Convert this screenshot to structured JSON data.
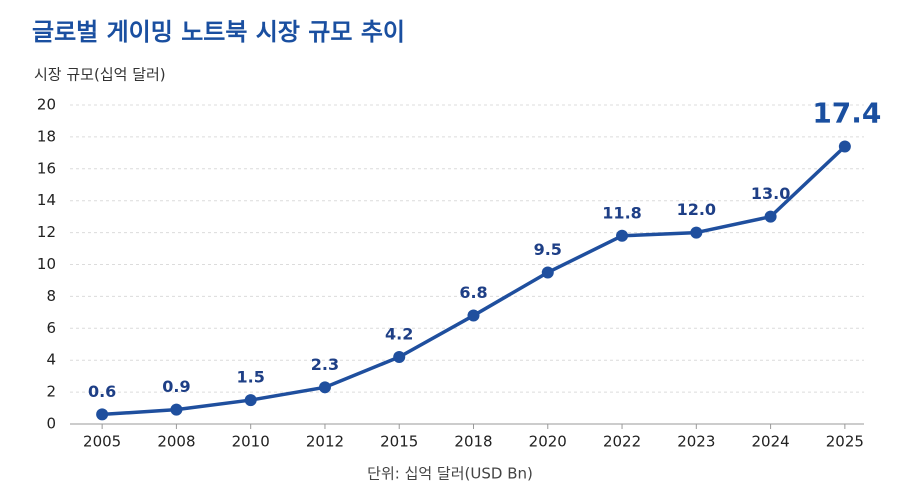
{
  "chart_data": {
    "type": "line",
    "title": "글로벌 게이밍 노트북 시장 규모 추이",
    "y_axis_label": "시장 규모(십억 달러)",
    "footnote": "단위: 십억 달러(USD Bn)",
    "categories": [
      "2005",
      "2008",
      "2010",
      "2012",
      "2015",
      "2018",
      "2020",
      "2022",
      "2023",
      "2024",
      "2025"
    ],
    "values": [
      0.6,
      0.9,
      1.5,
      2.3,
      4.2,
      6.8,
      9.5,
      11.8,
      12.0,
      13.0,
      17.4
    ],
    "value_labels": [
      "0.6",
      "0.9",
      "1.5",
      "2.3",
      "4.2",
      "6.8",
      "9.5",
      "11.8",
      "12.0",
      "13.0",
      "17.4"
    ],
    "color": "#1f4f9e",
    "ylim": [
      0,
      20
    ],
    "yticks": [
      0,
      2,
      4,
      6,
      8,
      10,
      12,
      14,
      16,
      18,
      20
    ],
    "grid": true
  }
}
